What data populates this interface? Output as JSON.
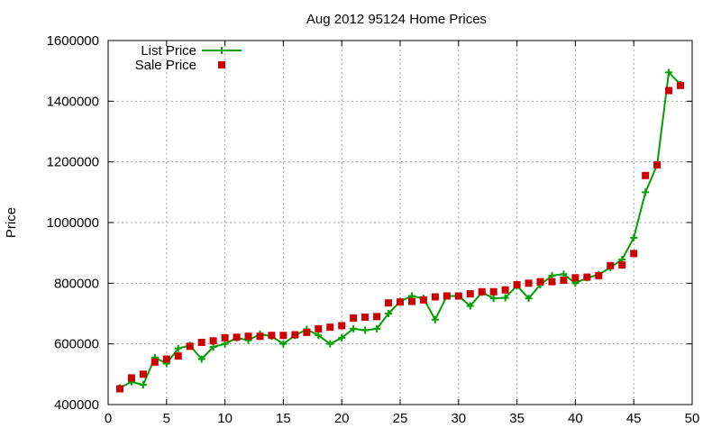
{
  "chart_data": {
    "type": "line",
    "title": "Aug 2012 95124 Home Prices",
    "xlabel": "",
    "ylabel": "Price",
    "xlim": [
      0,
      50
    ],
    "ylim": [
      400000,
      1600000
    ],
    "x_ticks": [
      0,
      5,
      10,
      15,
      20,
      25,
      30,
      35,
      40,
      45,
      50
    ],
    "y_ticks": [
      400000,
      600000,
      800000,
      1000000,
      1200000,
      1400000,
      1600000
    ],
    "x_tick_labels": [
      "0",
      "5",
      "10",
      "15",
      "20",
      "25",
      "30",
      "35",
      "40",
      "45",
      "50"
    ],
    "y_tick_labels": [
      "400000",
      "600000",
      "800000",
      "1000000",
      "1200000",
      "1400000",
      "1600000"
    ],
    "grid": true,
    "legend_position": "top-left",
    "series": [
      {
        "name": "List Price",
        "style": "line-with-plus-markers",
        "color": "#00a000",
        "x": [
          1,
          2,
          3,
          4,
          5,
          6,
          7,
          8,
          9,
          10,
          11,
          12,
          13,
          14,
          15,
          16,
          17,
          18,
          19,
          20,
          21,
          22,
          23,
          24,
          25,
          26,
          27,
          28,
          29,
          30,
          31,
          32,
          33,
          34,
          35,
          36,
          37,
          38,
          39,
          40,
          41,
          42,
          43,
          44,
          45,
          46,
          47,
          48,
          49
        ],
        "values": [
          455000,
          475000,
          465000,
          555000,
          535000,
          585000,
          595000,
          550000,
          590000,
          600000,
          620000,
          612000,
          632000,
          625000,
          600000,
          628000,
          648000,
          628000,
          600000,
          620000,
          650000,
          645000,
          650000,
          700000,
          740000,
          758000,
          750000,
          680000,
          758000,
          758000,
          725000,
          770000,
          750000,
          752000,
          792000,
          750000,
          795000,
          825000,
          830000,
          800000,
          818000,
          828000,
          852000,
          878000,
          950000,
          1100000,
          1190000,
          1495000,
          1455000
        ]
      },
      {
        "name": "Sale Price",
        "style": "square-markers",
        "color": "#cc0000",
        "x": [
          1,
          2,
          3,
          4,
          5,
          6,
          7,
          8,
          9,
          10,
          11,
          12,
          13,
          14,
          15,
          16,
          17,
          18,
          19,
          20,
          21,
          22,
          23,
          24,
          25,
          26,
          27,
          28,
          29,
          30,
          31,
          32,
          33,
          34,
          35,
          36,
          37,
          38,
          39,
          40,
          41,
          42,
          43,
          44,
          45,
          46,
          47,
          48,
          49
        ],
        "values": [
          452000,
          488000,
          500000,
          540000,
          550000,
          560000,
          592000,
          605000,
          610000,
          620000,
          622000,
          625000,
          625000,
          628000,
          628000,
          630000,
          638000,
          650000,
          655000,
          660000,
          685000,
          688000,
          690000,
          735000,
          738000,
          740000,
          745000,
          755000,
          758000,
          758000,
          765000,
          772000,
          772000,
          778000,
          795000,
          800000,
          805000,
          805000,
          810000,
          818000,
          820000,
          825000,
          858000,
          860000,
          898000,
          1155000,
          1190000,
          1435000,
          1452000
        ]
      }
    ]
  }
}
